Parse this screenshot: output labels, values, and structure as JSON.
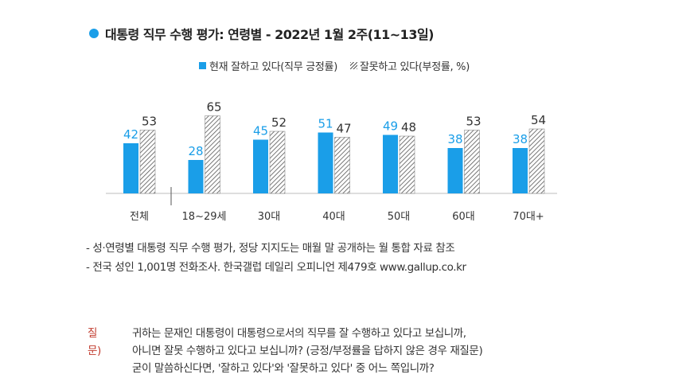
{
  "title": "대통령 직무 수행 평가: 연령별 - 2022년 1월 2주(11~13일)",
  "legend": {
    "positive": "현재 잘하고 있다(직무 긍정률)",
    "negative": "잘못하고 있다(부정률, %)"
  },
  "colors": {
    "positive": "#1a9ee8",
    "title_dot": "#1a9ee8",
    "question_label": "#c0392b"
  },
  "chart_data": {
    "type": "bar",
    "categories": [
      "전체",
      "18~29세",
      "30대",
      "40대",
      "50대",
      "60대",
      "70대+"
    ],
    "series": [
      {
        "name": "현재 잘하고 있다(직무 긍정률)",
        "values": [
          42,
          28,
          45,
          51,
          49,
          38,
          38
        ]
      },
      {
        "name": "잘못하고 있다(부정률, %)",
        "values": [
          53,
          65,
          52,
          47,
          48,
          53,
          54
        ]
      }
    ],
    "ylim": [
      0,
      70
    ],
    "grid": false
  },
  "notes": [
    "- 성·연령별 대통령 직무 수행 평가, 정당 지지도는 매월 말 공개하는 월 통합 자료 참조",
    "- 전국 성인 1,001명 전화조사. 한국갤럽 데일리 오피니언 제479호 www.gallup.co.kr"
  ],
  "question": {
    "label": "질문)",
    "lines": [
      "귀하는 문재인 대통령이 대통령으로서의 직무를 잘 수행하고 있다고 보십니까,",
      "아니면 잘못 수행하고 있다고 보십니까? (긍정/부정률을 답하지 않은 경우 재질문)",
      "굳이 말씀하신다면, '잘하고 있다'와 '잘못하고 있다' 중 어느 쪽입니까?"
    ]
  }
}
